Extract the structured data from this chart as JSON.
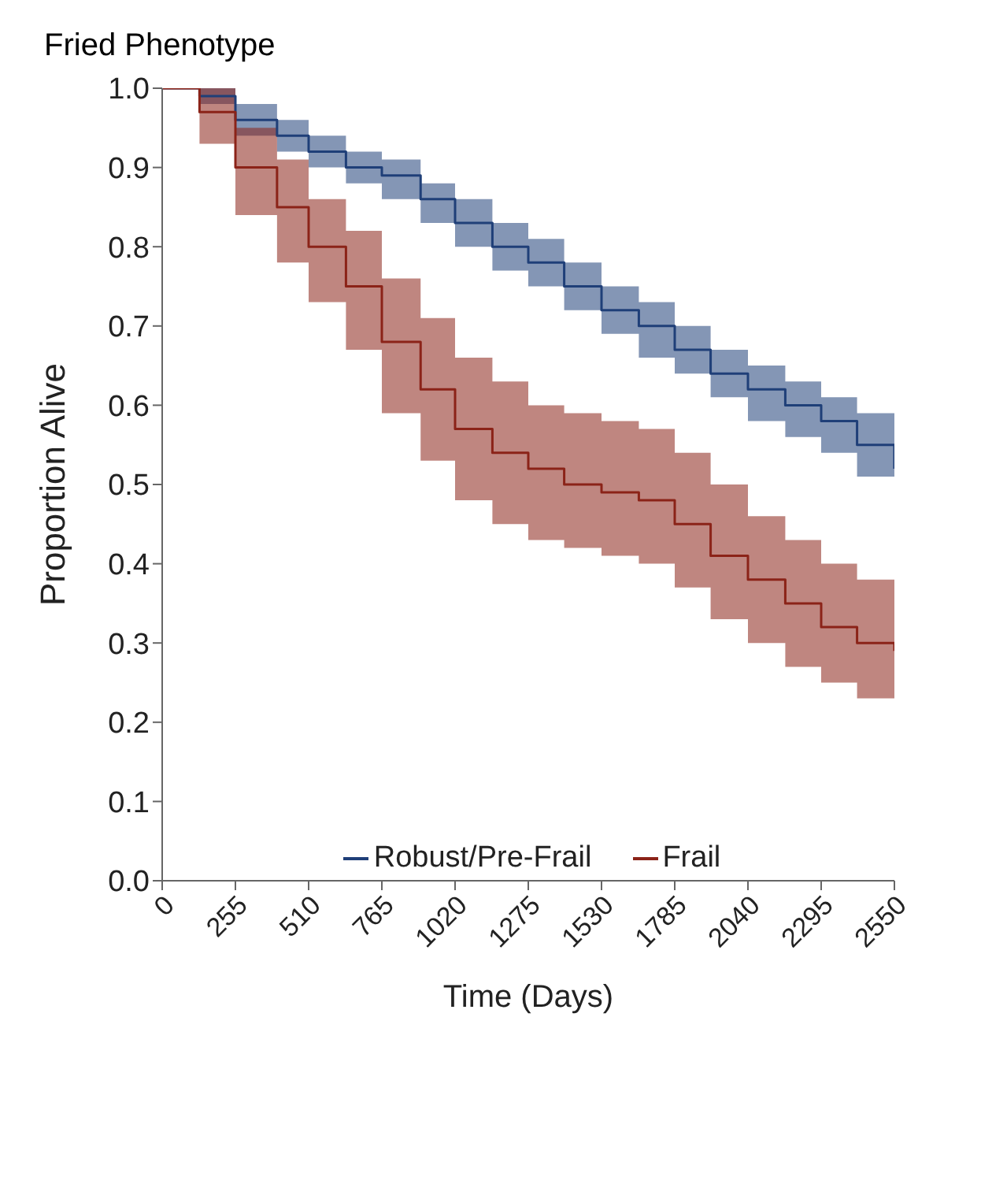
{
  "chart_data": {
    "type": "step",
    "title": "Fried Phenotype",
    "xlabel": "Time (Days)",
    "ylabel": "Proportion Alive",
    "x": [
      0,
      130,
      255,
      400,
      510,
      640,
      765,
      900,
      1020,
      1150,
      1275,
      1400,
      1530,
      1660,
      1785,
      1910,
      2040,
      2170,
      2295,
      2420,
      2550
    ],
    "xlim": [
      0,
      2550
    ],
    "xticks": [
      0,
      255,
      510,
      765,
      1020,
      1275,
      1530,
      1785,
      2040,
      2295,
      2550
    ],
    "ylim": [
      0,
      1
    ],
    "yticks": [
      {
        "value": 0,
        "label": "0.0"
      },
      0.1,
      0.2,
      0.3,
      0.4,
      0.5,
      0.6,
      0.7,
      0.8,
      0.9,
      {
        "value": 1,
        "label": "1.0"
      }
    ],
    "grid": false,
    "legend": "bottom",
    "marker": "none",
    "line_style": "solid",
    "series": [
      {
        "name": "Robust/Pre-Frail",
        "color": "#1f3f78",
        "values": [
          1,
          0.99,
          0.96,
          0.94,
          0.92,
          0.9,
          0.89,
          0.86,
          0.83,
          0.8,
          0.78,
          0.75,
          0.72,
          0.7,
          0.67,
          0.64,
          0.62,
          0.6,
          0.58,
          0.55,
          0.52
        ],
        "lower": [
          1,
          0.98,
          0.94,
          0.92,
          0.9,
          0.88,
          0.86,
          0.83,
          0.8,
          0.77,
          0.75,
          0.72,
          0.69,
          0.66,
          0.64,
          0.61,
          0.58,
          0.56,
          0.54,
          0.51,
          0.48
        ],
        "upper": [
          1,
          1,
          0.98,
          0.96,
          0.94,
          0.92,
          0.91,
          0.88,
          0.86,
          0.83,
          0.81,
          0.78,
          0.75,
          0.73,
          0.7,
          0.67,
          0.65,
          0.63,
          0.61,
          0.59,
          0.56
        ]
      },
      {
        "name": "Frail",
        "color": "#8b2318",
        "values": [
          1,
          0.97,
          0.9,
          0.85,
          0.8,
          0.75,
          0.68,
          0.62,
          0.57,
          0.54,
          0.52,
          0.5,
          0.49,
          0.48,
          0.45,
          0.41,
          0.38,
          0.35,
          0.32,
          0.3,
          0.29
        ],
        "lower": [
          1,
          0.93,
          0.84,
          0.78,
          0.73,
          0.67,
          0.59,
          0.53,
          0.48,
          0.45,
          0.43,
          0.42,
          0.41,
          0.4,
          0.37,
          0.33,
          0.3,
          0.27,
          0.25,
          0.23,
          0.22
        ],
        "upper": [
          1,
          1,
          0.95,
          0.91,
          0.86,
          0.82,
          0.76,
          0.71,
          0.66,
          0.63,
          0.6,
          0.59,
          0.58,
          0.57,
          0.54,
          0.5,
          0.46,
          0.43,
          0.4,
          0.38,
          0.37
        ]
      }
    ]
  }
}
